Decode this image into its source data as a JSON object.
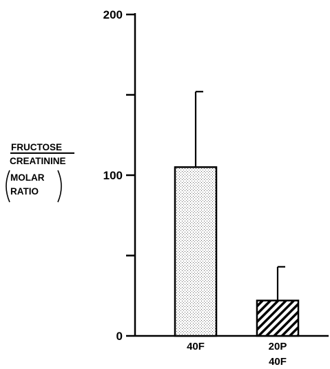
{
  "chart_data": {
    "type": "bar",
    "title": "",
    "xlabel": "",
    "ylabel_lines": [
      "FRUCTOSE",
      "CREATININE",
      "MOLAR",
      "RATIO"
    ],
    "ylim": [
      0,
      200
    ],
    "yticks": [
      0,
      50,
      100,
      150,
      200
    ],
    "ytick_labels": [
      "0",
      "",
      "100",
      "",
      "200"
    ],
    "grid": false,
    "categories": [
      {
        "lines": [
          "40F"
        ],
        "value": 105,
        "error": 47,
        "fill": "stipple"
      },
      {
        "lines": [
          "20P",
          "40F"
        ],
        "value": 22,
        "error": 21,
        "fill": "hatch"
      }
    ]
  }
}
